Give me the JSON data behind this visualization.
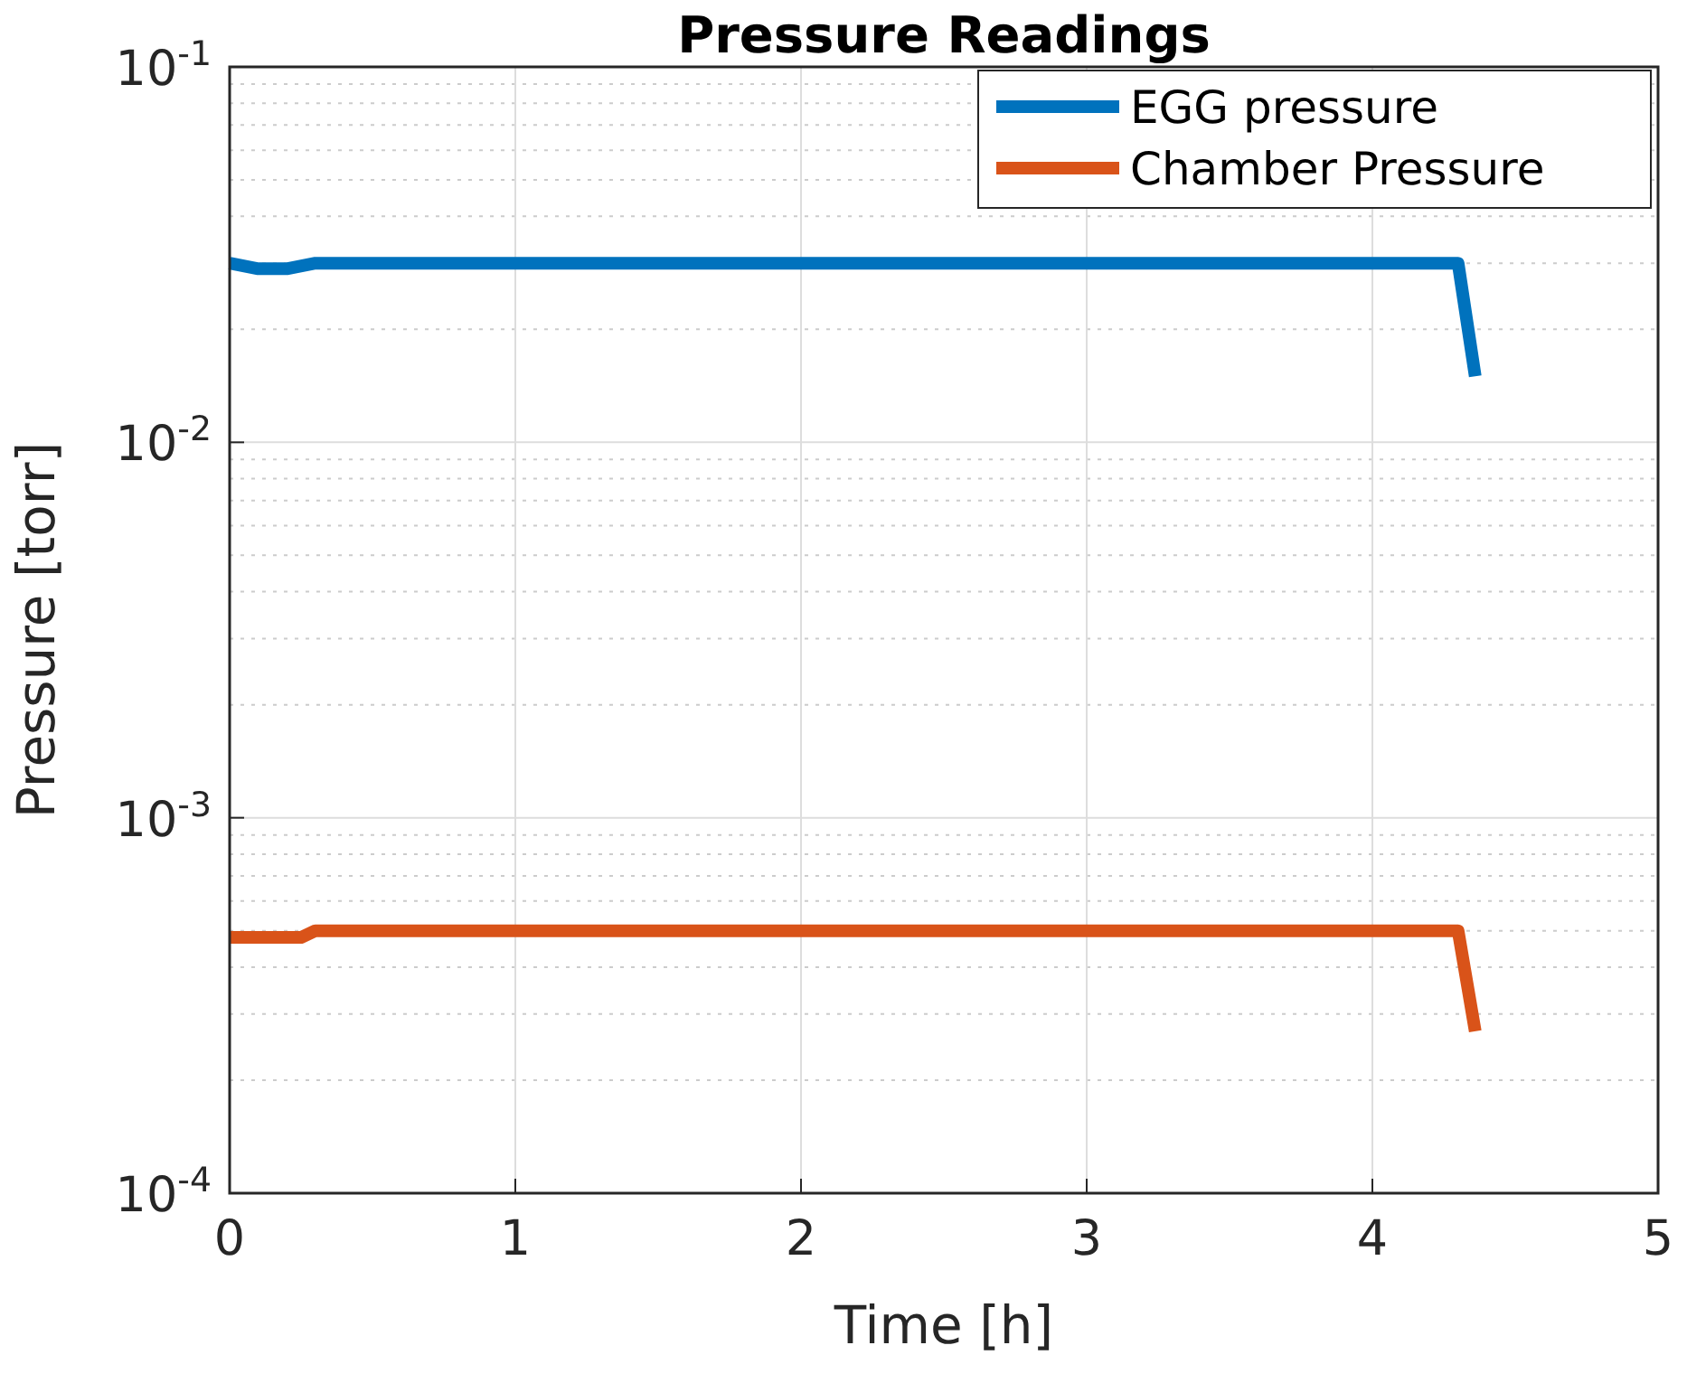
{
  "chart_data": {
    "type": "line",
    "title": "Pressure Readings",
    "xlabel": "Time [h]",
    "ylabel": "Pressure [torr]",
    "series": [
      {
        "name": "EGG pressure",
        "color": "#0072bd",
        "x": [
          0,
          0.1,
          0.2,
          0.3,
          1,
          2,
          3,
          4,
          4.3,
          4.36
        ],
        "values": [
          0.03,
          0.029,
          0.029,
          0.03,
          0.03,
          0.03,
          0.03,
          0.03,
          0.03,
          0.015
        ]
      },
      {
        "name": "Chamber Pressure",
        "color": "#d95319",
        "x": [
          0,
          0.25,
          0.3,
          1,
          2,
          3,
          4,
          4.3,
          4.36
        ],
        "values": [
          0.00048,
          0.00048,
          0.0005,
          0.0005,
          0.0005,
          0.0005,
          0.0005,
          0.0005,
          0.00027
        ]
      }
    ],
    "xlim": [
      0,
      5
    ],
    "xticks": [
      0,
      1,
      2,
      3,
      4,
      5
    ],
    "ylim": [
      0.0001,
      0.1
    ],
    "yticks": [
      {
        "value": 0.0001,
        "label": "10$^{-4}$"
      },
      {
        "value": 0.001,
        "label": "10$^{-3}$"
      },
      {
        "value": 0.01,
        "label": "10$^{-2}$"
      },
      {
        "value": 0.1,
        "label": "10$^{-1}$"
      }
    ],
    "log": "y",
    "grid": true,
    "legend": "top right",
    "line_style": "solid"
  }
}
